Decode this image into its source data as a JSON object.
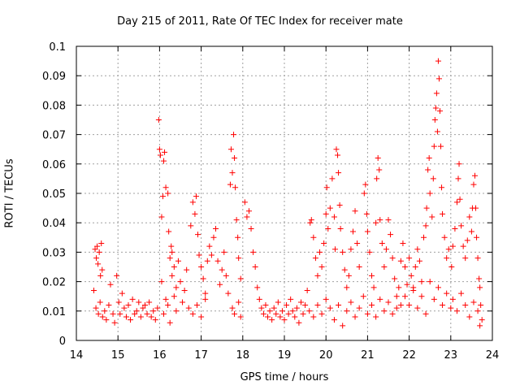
{
  "chart_data": {
    "type": "scatter",
    "title": "Day 215 of 2011, Rate Of TEC Index for receiver mate",
    "xlabel": "GPS time / hours",
    "ylabel": "ROTI / TECUs",
    "xlim": [
      14,
      24
    ],
    "ylim": [
      0,
      0.1
    ],
    "xticks": [
      "14",
      "15",
      "16",
      "17",
      "18",
      "19",
      "20",
      "21",
      "22",
      "23",
      "24"
    ],
    "yticks": [
      "0",
      "0.01",
      "0.02",
      "0.03",
      "0.04",
      "0.05",
      "0.06",
      "0.07",
      "0.08",
      "0.09",
      "0.1"
    ],
    "grid": true,
    "marker": "+",
    "color": "#ff0000",
    "series": [
      {
        "name": "mate",
        "points": [
          [
            14.42,
            0.017
          ],
          [
            14.45,
            0.031
          ],
          [
            14.48,
            0.028
          ],
          [
            14.5,
            0.032
          ],
          [
            14.52,
            0.026
          ],
          [
            14.55,
            0.03
          ],
          [
            14.58,
            0.022
          ],
          [
            14.6,
            0.033
          ],
          [
            14.62,
            0.024
          ],
          [
            14.47,
            0.011
          ],
          [
            14.53,
            0.009
          ],
          [
            14.57,
            0.013
          ],
          [
            14.63,
            0.008
          ],
          [
            14.68,
            0.01
          ],
          [
            14.72,
            0.007
          ],
          [
            14.78,
            0.012
          ],
          [
            14.82,
            0.019
          ],
          [
            14.88,
            0.009
          ],
          [
            14.92,
            0.006
          ],
          [
            14.97,
            0.022
          ],
          [
            15.02,
            0.013
          ],
          [
            15.05,
            0.009
          ],
          [
            15.1,
            0.016
          ],
          [
            15.15,
            0.011
          ],
          [
            15.2,
            0.008
          ],
          [
            15.25,
            0.012
          ],
          [
            15.3,
            0.007
          ],
          [
            15.35,
            0.014
          ],
          [
            15.4,
            0.009
          ],
          [
            15.45,
            0.01
          ],
          [
            15.5,
            0.013
          ],
          [
            15.55,
            0.008
          ],
          [
            15.6,
            0.011
          ],
          [
            15.65,
            0.012
          ],
          [
            15.7,
            0.009
          ],
          [
            15.75,
            0.013
          ],
          [
            15.8,
            0.008
          ],
          [
            15.85,
            0.01
          ],
          [
            15.9,
            0.007
          ],
          [
            15.95,
            0.011
          ],
          [
            15.98,
            0.075
          ],
          [
            16.0,
            0.065
          ],
          [
            16.02,
            0.063
          ],
          [
            16.05,
            0.042
          ],
          [
            16.08,
            0.049
          ],
          [
            16.1,
            0.061
          ],
          [
            16.12,
            0.064
          ],
          [
            16.15,
            0.052
          ],
          [
            16.2,
            0.05
          ],
          [
            16.22,
            0.037
          ],
          [
            16.25,
            0.028
          ],
          [
            16.28,
            0.032
          ],
          [
            16.3,
            0.03
          ],
          [
            16.35,
            0.025
          ],
          [
            16.4,
            0.018
          ],
          [
            16.05,
            0.02
          ],
          [
            16.1,
            0.009
          ],
          [
            16.15,
            0.014
          ],
          [
            16.2,
            0.012
          ],
          [
            16.25,
            0.006
          ],
          [
            16.3,
            0.022
          ],
          [
            16.35,
            0.015
          ],
          [
            16.4,
            0.01
          ],
          [
            16.45,
            0.027
          ],
          [
            16.5,
            0.02
          ],
          [
            16.55,
            0.013
          ],
          [
            16.6,
            0.017
          ],
          [
            16.65,
            0.024
          ],
          [
            16.7,
            0.011
          ],
          [
            16.75,
            0.039
          ],
          [
            16.8,
            0.047
          ],
          [
            16.85,
            0.043
          ],
          [
            16.88,
            0.049
          ],
          [
            16.92,
            0.036
          ],
          [
            16.95,
            0.029
          ],
          [
            17.0,
            0.025
          ],
          [
            17.05,
            0.021
          ],
          [
            17.1,
            0.016
          ],
          [
            16.8,
            0.009
          ],
          [
            16.9,
            0.012
          ],
          [
            17.0,
            0.008
          ],
          [
            17.1,
            0.014
          ],
          [
            17.15,
            0.027
          ],
          [
            17.2,
            0.032
          ],
          [
            17.25,
            0.029
          ],
          [
            17.3,
            0.035
          ],
          [
            17.35,
            0.038
          ],
          [
            17.4,
            0.027
          ],
          [
            17.45,
            0.019
          ],
          [
            17.5,
            0.024
          ],
          [
            17.55,
            0.03
          ],
          [
            17.6,
            0.022
          ],
          [
            17.65,
            0.016
          ],
          [
            17.72,
            0.065
          ],
          [
            17.75,
            0.057
          ],
          [
            17.78,
            0.07
          ],
          [
            17.8,
            0.062
          ],
          [
            17.82,
            0.052
          ],
          [
            17.7,
            0.053
          ],
          [
            17.85,
            0.041
          ],
          [
            17.88,
            0.035
          ],
          [
            17.9,
            0.028
          ],
          [
            17.95,
            0.021
          ],
          [
            17.75,
            0.011
          ],
          [
            17.8,
            0.009
          ],
          [
            17.9,
            0.013
          ],
          [
            17.95,
            0.008
          ],
          [
            18.05,
            0.047
          ],
          [
            18.1,
            0.042
          ],
          [
            18.15,
            0.044
          ],
          [
            18.2,
            0.038
          ],
          [
            18.25,
            0.03
          ],
          [
            18.3,
            0.025
          ],
          [
            18.35,
            0.018
          ],
          [
            18.4,
            0.014
          ],
          [
            18.45,
            0.011
          ],
          [
            18.5,
            0.009
          ],
          [
            18.55,
            0.012
          ],
          [
            18.6,
            0.008
          ],
          [
            18.65,
            0.01
          ],
          [
            18.7,
            0.007
          ],
          [
            18.75,
            0.011
          ],
          [
            18.8,
            0.009
          ],
          [
            18.85,
            0.013
          ],
          [
            18.9,
            0.008
          ],
          [
            18.95,
            0.01
          ],
          [
            19.0,
            0.007
          ],
          [
            19.05,
            0.012
          ],
          [
            19.1,
            0.009
          ],
          [
            19.15,
            0.014
          ],
          [
            19.2,
            0.01
          ],
          [
            19.25,
            0.008
          ],
          [
            19.3,
            0.011
          ],
          [
            19.35,
            0.006
          ],
          [
            19.4,
            0.013
          ],
          [
            19.45,
            0.009
          ],
          [
            19.5,
            0.012
          ],
          [
            19.55,
            0.017
          ],
          [
            19.6,
            0.01
          ],
          [
            19.62,
            0.04
          ],
          [
            19.65,
            0.041
          ],
          [
            19.7,
            0.035
          ],
          [
            19.75,
            0.028
          ],
          [
            19.8,
            0.022
          ],
          [
            19.85,
            0.03
          ],
          [
            19.9,
            0.025
          ],
          [
            19.95,
            0.033
          ],
          [
            20.0,
            0.043
          ],
          [
            20.02,
            0.052
          ],
          [
            20.05,
            0.038
          ],
          [
            20.1,
            0.045
          ],
          [
            20.15,
            0.055
          ],
          [
            20.2,
            0.042
          ],
          [
            20.22,
            0.031
          ],
          [
            20.25,
            0.065
          ],
          [
            20.28,
            0.063
          ],
          [
            20.3,
            0.057
          ],
          [
            20.33,
            0.046
          ],
          [
            20.35,
            0.038
          ],
          [
            20.4,
            0.03
          ],
          [
            20.45,
            0.024
          ],
          [
            20.5,
            0.018
          ],
          [
            20.55,
            0.022
          ],
          [
            20.6,
            0.031
          ],
          [
            20.65,
            0.037
          ],
          [
            20.7,
            0.044
          ],
          [
            20.75,
            0.033
          ],
          [
            20.8,
            0.025
          ],
          [
            19.7,
            0.008
          ],
          [
            19.8,
            0.012
          ],
          [
            19.9,
            0.009
          ],
          [
            20.0,
            0.014
          ],
          [
            20.1,
            0.011
          ],
          [
            20.2,
            0.007
          ],
          [
            20.3,
            0.012
          ],
          [
            20.4,
            0.005
          ],
          [
            20.5,
            0.01
          ],
          [
            20.6,
            0.013
          ],
          [
            20.7,
            0.008
          ],
          [
            20.8,
            0.011
          ],
          [
            20.9,
            0.015
          ],
          [
            20.92,
            0.05
          ],
          [
            20.95,
            0.053
          ],
          [
            20.98,
            0.043
          ],
          [
            21.0,
            0.037
          ],
          [
            21.05,
            0.03
          ],
          [
            21.1,
            0.022
          ],
          [
            21.15,
            0.018
          ],
          [
            21.2,
            0.04
          ],
          [
            21.22,
            0.055
          ],
          [
            21.25,
            0.062
          ],
          [
            21.28,
            0.058
          ],
          [
            21.3,
            0.041
          ],
          [
            21.35,
            0.033
          ],
          [
            21.4,
            0.025
          ],
          [
            21.45,
            0.031
          ],
          [
            21.5,
            0.041
          ],
          [
            21.55,
            0.036
          ],
          [
            21.6,
            0.028
          ],
          [
            21.65,
            0.021
          ],
          [
            21.7,
            0.015
          ],
          [
            21.75,
            0.018
          ],
          [
            21.8,
            0.027
          ],
          [
            21.85,
            0.033
          ],
          [
            21.9,
            0.025
          ],
          [
            21.95,
            0.019
          ],
          [
            21.0,
            0.009
          ],
          [
            21.1,
            0.012
          ],
          [
            21.2,
            0.008
          ],
          [
            21.3,
            0.014
          ],
          [
            21.4,
            0.01
          ],
          [
            21.5,
            0.013
          ],
          [
            21.6,
            0.009
          ],
          [
            21.7,
            0.011
          ],
          [
            21.8,
            0.012
          ],
          [
            21.9,
            0.015
          ],
          [
            22.0,
            0.028
          ],
          [
            22.05,
            0.022
          ],
          [
            22.1,
            0.018
          ],
          [
            22.15,
            0.025
          ],
          [
            22.2,
            0.031
          ],
          [
            22.25,
            0.027
          ],
          [
            22.3,
            0.02
          ],
          [
            22.35,
            0.035
          ],
          [
            22.4,
            0.039
          ],
          [
            22.42,
            0.045
          ],
          [
            22.45,
            0.058
          ],
          [
            22.48,
            0.062
          ],
          [
            22.5,
            0.05
          ],
          [
            22.55,
            0.042
          ],
          [
            22.58,
            0.055
          ],
          [
            22.6,
            0.066
          ],
          [
            22.62,
            0.075
          ],
          [
            22.64,
            0.079
          ],
          [
            22.66,
            0.084
          ],
          [
            22.68,
            0.071
          ],
          [
            22.7,
            0.095
          ],
          [
            22.72,
            0.089
          ],
          [
            22.74,
            0.078
          ],
          [
            22.76,
            0.066
          ],
          [
            22.78,
            0.052
          ],
          [
            22.8,
            0.043
          ],
          [
            22.85,
            0.035
          ],
          [
            22.9,
            0.028
          ],
          [
            22.95,
            0.031
          ],
          [
            22.0,
            0.012
          ],
          [
            22.1,
            0.017
          ],
          [
            22.2,
            0.011
          ],
          [
            22.3,
            0.015
          ],
          [
            22.4,
            0.009
          ],
          [
            22.5,
            0.02
          ],
          [
            22.6,
            0.014
          ],
          [
            22.7,
            0.018
          ],
          [
            22.8,
            0.012
          ],
          [
            22.9,
            0.016
          ],
          [
            23.0,
            0.011
          ],
          [
            23.02,
            0.025
          ],
          [
            23.05,
            0.032
          ],
          [
            23.1,
            0.038
          ],
          [
            23.15,
            0.047
          ],
          [
            23.18,
            0.055
          ],
          [
            23.2,
            0.06
          ],
          [
            23.22,
            0.048
          ],
          [
            23.25,
            0.039
          ],
          [
            23.3,
            0.032
          ],
          [
            23.35,
            0.028
          ],
          [
            23.4,
            0.034
          ],
          [
            23.45,
            0.042
          ],
          [
            23.5,
            0.037
          ],
          [
            23.52,
            0.045
          ],
          [
            23.55,
            0.053
          ],
          [
            23.58,
            0.056
          ],
          [
            23.6,
            0.045
          ],
          [
            23.62,
            0.035
          ],
          [
            23.65,
            0.028
          ],
          [
            23.68,
            0.021
          ],
          [
            23.7,
            0.018
          ],
          [
            23.72,
            0.012
          ],
          [
            23.75,
            0.007
          ],
          [
            23.7,
            0.005
          ],
          [
            23.05,
            0.014
          ],
          [
            23.15,
            0.01
          ],
          [
            23.25,
            0.016
          ],
          [
            23.35,
            0.012
          ],
          [
            23.45,
            0.008
          ],
          [
            23.55,
            0.013
          ],
          [
            23.65,
            0.01
          ]
        ]
      }
    ]
  }
}
